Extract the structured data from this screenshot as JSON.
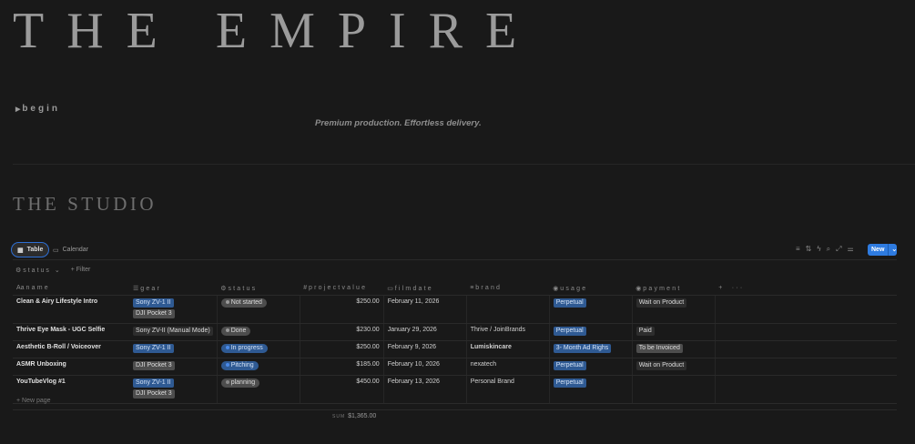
{
  "header": {
    "title": "THE EMPIRE",
    "toggle_label": "begin",
    "tagline": "Premium production. Effortless delivery.",
    "section_title": "THE STUDIO"
  },
  "views": {
    "tabs": [
      {
        "label": "Table",
        "icon": "table-icon",
        "active": true
      },
      {
        "label": "Calendar",
        "icon": "calendar-icon"
      }
    ],
    "new_label": "New"
  },
  "filters": {
    "status_label": "status",
    "filter_label": "+ Filter"
  },
  "columns": [
    {
      "label": "name",
      "icon": "Aa"
    },
    {
      "label": "gear",
      "icon": "list-icon"
    },
    {
      "label": "status",
      "icon": "status-icon"
    },
    {
      "label": "projectvalue",
      "icon": "#"
    },
    {
      "label": "filmdate",
      "icon": "calendar-icon"
    },
    {
      "label": "brand",
      "icon": "text-icon"
    },
    {
      "label": "usage",
      "icon": "select-icon"
    },
    {
      "label": "payment",
      "icon": "select-icon"
    }
  ],
  "rows": [
    {
      "name": "Clean & Airy Lifestyle Intro",
      "gear": [
        "Sony ZV-1 II",
        "DJI Pocket 3"
      ],
      "status": "Not started",
      "value": "$250.00",
      "date": "February 11, 2026",
      "brand": "",
      "usage": "Perpetual",
      "payment": "Wait on Product"
    },
    {
      "name": "Thrive Eye Mask - UGC Selfie",
      "gear": [
        "Sony ZV-II (Manual Mode)"
      ],
      "status": "Done",
      "value": "$230.00",
      "date": "January 29, 2026",
      "brand": "Thrive / JoinBrands",
      "usage": "Perpetual",
      "payment": "Paid"
    },
    {
      "name": "Aesthetic B-Roll / Voiceover",
      "gear": [
        "Sony ZV-1 II"
      ],
      "status": "In progress",
      "value": "$250.00",
      "date": "February 9, 2026",
      "brand": "Lumiskincare",
      "usage": "3- Month Ad Righs",
      "payment": "To be Invoiced"
    },
    {
      "name": "ASMR Unboxing",
      "gear": [
        "DJI Pocket 3"
      ],
      "status": "Pitching",
      "value": "$185.00",
      "date": "February 10, 2026",
      "brand": "nexatech",
      "usage": "Perpetual",
      "payment": "Wait on Product"
    },
    {
      "name": "YouTubeVlog #1",
      "gear": [
        "Sony ZV-1 II",
        "DJI Pocket 3"
      ],
      "status": "planning",
      "value": "$450.00",
      "date": "February 13, 2026",
      "brand": "Personal Brand",
      "usage": "Perpetual",
      "payment": ""
    }
  ],
  "footer": {
    "new_page": "New page",
    "sum_label": "SUM",
    "sum_value": "$1,365.00"
  },
  "colors": {
    "background": "#191919",
    "accent": "#2e7be0",
    "blue_tag": "#2f5a93",
    "gray_tag": "#4d4d4d"
  }
}
